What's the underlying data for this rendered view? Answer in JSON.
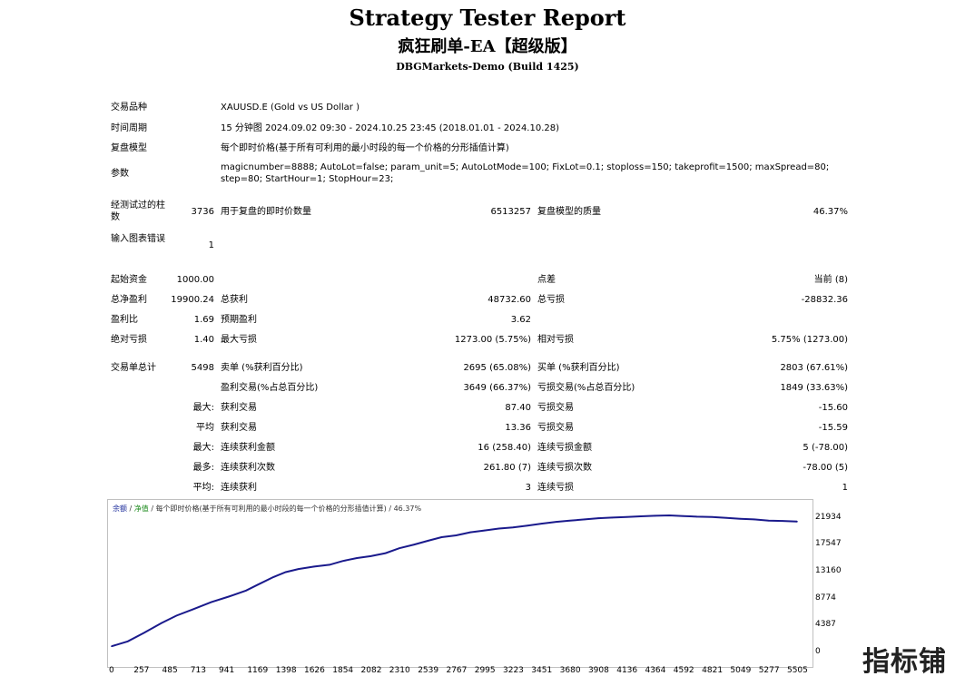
{
  "report": {
    "title": "Strategy Tester Report",
    "subtitle": "疯狂刷单-EA【超级版】",
    "broker": "DBGMarkets-Demo (Build 1425)"
  },
  "settings": {
    "symbol_label": "交易品种",
    "symbol_value": "XAUUSD.E (Gold vs US Dollar )",
    "period_label": "时间周期",
    "period_value": "15 分钟图 2024.09.02 09:30 - 2024.10.25 23:45 (2018.01.01 - 2024.10.28)",
    "model_label": "复盘模型",
    "model_value": "每个即时价格(基于所有可利用的最小时段的每一个价格的分形插值计算)",
    "params_label": "参数",
    "params_value": "magicnumber=8888; AutoLot=false; param_unit=5; AutoLotMode=100; FixLot=0.1; stoploss=150; takeprofit=1500; maxSpread=80; step=80; StartHour=1; StopHour=23;"
  },
  "bars": {
    "bars_label": "经测试过的柱数",
    "bars_value": "3736",
    "ticks_label": "用于复盘的即时价数量",
    "ticks_value": "6513257",
    "quality_label": "复盘模型的质量",
    "quality_value": "46.37%",
    "errors_label": "输入图表错误",
    "errors_value": "1"
  },
  "results": {
    "initial_deposit_label": "起始资金",
    "initial_deposit_value": "1000.00",
    "spread_label": "点差",
    "spread_value": "当前 (8)",
    "net_profit_label": "总净盈利",
    "net_profit_value": "19900.24",
    "gross_profit_label": "总获利",
    "gross_profit_value": "48732.60",
    "gross_loss_label": "总亏损",
    "gross_loss_value": "-28832.36",
    "profit_factor_label": "盈利比",
    "profit_factor_value": "1.69",
    "expected_payoff_label": "预期盈利",
    "expected_payoff_value": "3.62",
    "abs_drawdown_label": "绝对亏损",
    "abs_drawdown_value": "1.40",
    "max_drawdown_label": "最大亏损",
    "max_drawdown_value": "1273.00 (5.75%)",
    "rel_drawdown_label": "相对亏损",
    "rel_drawdown_value": "5.75% (1273.00)"
  },
  "trades": {
    "total_label": "交易单总计",
    "total_value": "5498",
    "short_label": "卖单 (%获利百分比)",
    "short_value": "2695 (65.08%)",
    "long_label": "买单 (%获利百分比)",
    "long_value": "2803 (67.61%)",
    "profit_trades_label": "盈利交易(%占总百分比)",
    "profit_trades_value": "3649 (66.37%)",
    "loss_trades_label": "亏损交易(%占总百分比)",
    "loss_trades_value": "1849 (33.63%)",
    "largest_prefix": "最大:",
    "largest_profit_label": "获利交易",
    "largest_profit_value": "87.40",
    "largest_loss_label": "亏损交易",
    "largest_loss_value": "-15.60",
    "average_prefix": "平均",
    "average_profit_label": "获利交易",
    "average_profit_value": "13.36",
    "average_loss_label": "亏损交易",
    "average_loss_value": "-15.59",
    "max_consec_prefix": "最大:",
    "max_consec_wins_label": "连续获利金额",
    "max_consec_wins_value": "16 (258.40)",
    "max_consec_losses_label": "连续亏损金额",
    "max_consec_losses_value": "5 (-78.00)",
    "max_consec_amt_prefix": "最多:",
    "max_consec_profit_label": "连续获利次数",
    "max_consec_profit_value": "261.80 (7)",
    "max_consec_loss_label": "连续亏损次数",
    "max_consec_loss_value": "-78.00 (5)",
    "avg_consec_prefix": "平均:",
    "avg_consec_wins_label": "连续获利",
    "avg_consec_wins_value": "3",
    "avg_consec_losses_label": "连续亏损",
    "avg_consec_losses_value": "1"
  },
  "chart_legend": {
    "part_a": "余额",
    "sep1": " / ",
    "part_b": "净值",
    "rest": " / 每个即时价格(基于所有可利用的最小时段的每一个价格的分形插值计算) / 46.37%"
  },
  "watermark": "指标铺",
  "colors": {
    "line": "#1a1a8c",
    "grid": "#d8d8d8",
    "legend_balance": "#1a2a9a",
    "legend_equity": "#1b8a1b"
  },
  "chart_data": {
    "type": "line",
    "title": "",
    "xlabel": "",
    "ylabel": "",
    "x_ticks": [
      0,
      257,
      485,
      713,
      941,
      1169,
      1398,
      1626,
      1854,
      2082,
      2310,
      2539,
      2767,
      2995,
      3223,
      3451,
      3680,
      3908,
      4136,
      4364,
      4592,
      4821,
      5049,
      5277,
      5505
    ],
    "y_ticks": [
      0,
      4387,
      8774,
      13160,
      17547,
      21934
    ],
    "xlim": [
      0,
      5600
    ],
    "ylim": [
      0,
      22500
    ],
    "grid": false,
    "series": [
      {
        "x": [
          0,
          130,
          260,
          400,
          520,
          650,
          800,
          940,
          1080,
          1169,
          1300,
          1398,
          1500,
          1626,
          1750,
          1854,
          1970,
          2082,
          2200,
          2310,
          2430,
          2539,
          2650,
          2767,
          2880,
          2995,
          3110,
          3223,
          3340,
          3451,
          3570,
          3680,
          3800,
          3908,
          4020,
          4136,
          4250,
          4364,
          4480,
          4592,
          4700,
          4821,
          4940,
          5049,
          5160,
          5277,
          5390,
          5505
        ],
        "values": [
          1000,
          1800,
          3200,
          4800,
          6000,
          7000,
          8200,
          9100,
          10100,
          11000,
          12300,
          13100,
          13600,
          14000,
          14300,
          14900,
          15400,
          15700,
          16200,
          17000,
          17600,
          18200,
          18800,
          19100,
          19600,
          19900,
          20200,
          20400,
          20700,
          21000,
          21300,
          21500,
          21700,
          21900,
          22000,
          22100,
          22200,
          22300,
          22350,
          22250,
          22150,
          22100,
          21950,
          21800,
          21700,
          21500,
          21450,
          21350
        ]
      }
    ]
  }
}
